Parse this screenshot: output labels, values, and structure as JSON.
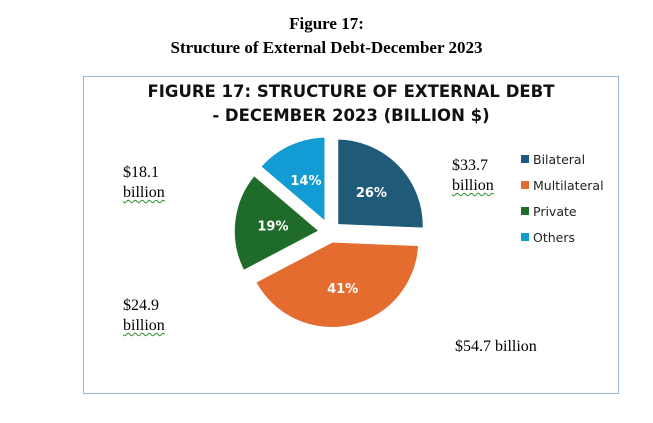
{
  "document": {
    "figure_number": "Figure 17:",
    "figure_caption": "Structure of External Debt-December 2023"
  },
  "annotations": {
    "bilateral": [
      "$33.7",
      "billion"
    ],
    "multilateral": [
      "$54.7 billion"
    ],
    "private": [
      "$24.9",
      "billion"
    ],
    "others": [
      "$18.1",
      "billion"
    ]
  },
  "chart_data": {
    "type": "pie",
    "title": "FIGURE 17: STRUCTURE OF EXTERNAL DEBT - DECEMBER 2023 (BILLION $)",
    "title_lines": [
      "FIGURE 17: STRUCTURE OF EXTERNAL DEBT",
      "- DECEMBER 2023 (BILLION $)"
    ],
    "legend_position": "right",
    "exploded": true,
    "slices": [
      {
        "label": "Bilateral",
        "value": 33.7,
        "percent_label": "26%",
        "color": "#1f5a78"
      },
      {
        "label": "Multilateral",
        "value": 54.7,
        "percent_label": "41%",
        "color": "#e46c2f"
      },
      {
        "label": "Private",
        "value": 24.9,
        "percent_label": "19%",
        "color": "#1e6b2a"
      },
      {
        "label": "Others",
        "value": 18.1,
        "percent_label": "14%",
        "color": "#139bd3"
      }
    ]
  }
}
